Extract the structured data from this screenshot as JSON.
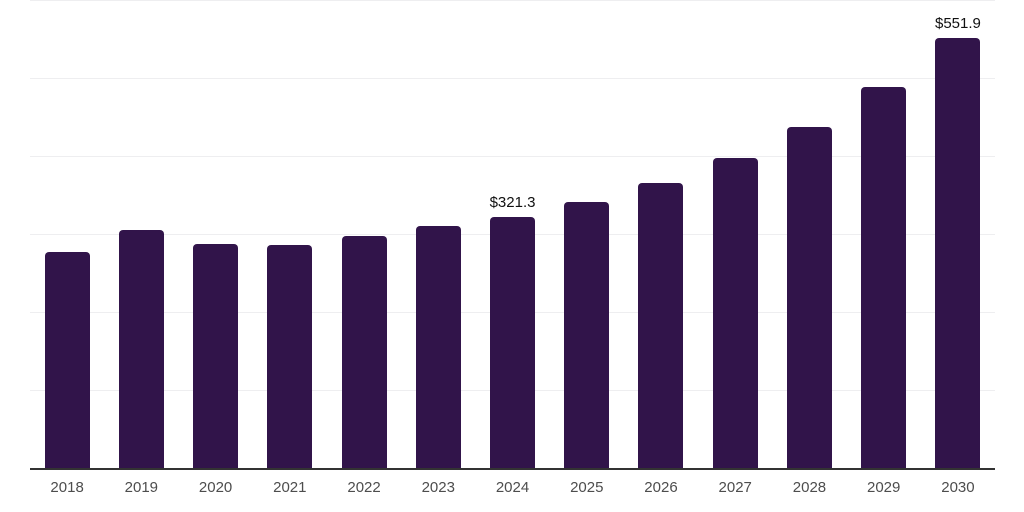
{
  "chart_data": {
    "type": "bar",
    "title": "",
    "xlabel": "",
    "ylabel": "",
    "categories": [
      "2018",
      "2019",
      "2020",
      "2021",
      "2022",
      "2023",
      "2024",
      "2025",
      "2026",
      "2027",
      "2028",
      "2029",
      "2030"
    ],
    "values": [
      277,
      305,
      287,
      286,
      297,
      310,
      321.3,
      341,
      365,
      398,
      437,
      488,
      551.9
    ],
    "data_labels": [
      "",
      "",
      "",
      "",
      "",
      "",
      "$321.3",
      "",
      "",
      "",
      "",
      "",
      "$551.9"
    ],
    "ylim": [
      0,
      600
    ],
    "gridline_step": 100,
    "grid": true,
    "legend_position": "none",
    "bar_color": "#31144a",
    "axis_color": "#333333",
    "gridline_color": "#eeeef0",
    "tick_label_color": "#4d4d4d",
    "data_label_color": "#111111",
    "background_color": "#ffffff"
  }
}
